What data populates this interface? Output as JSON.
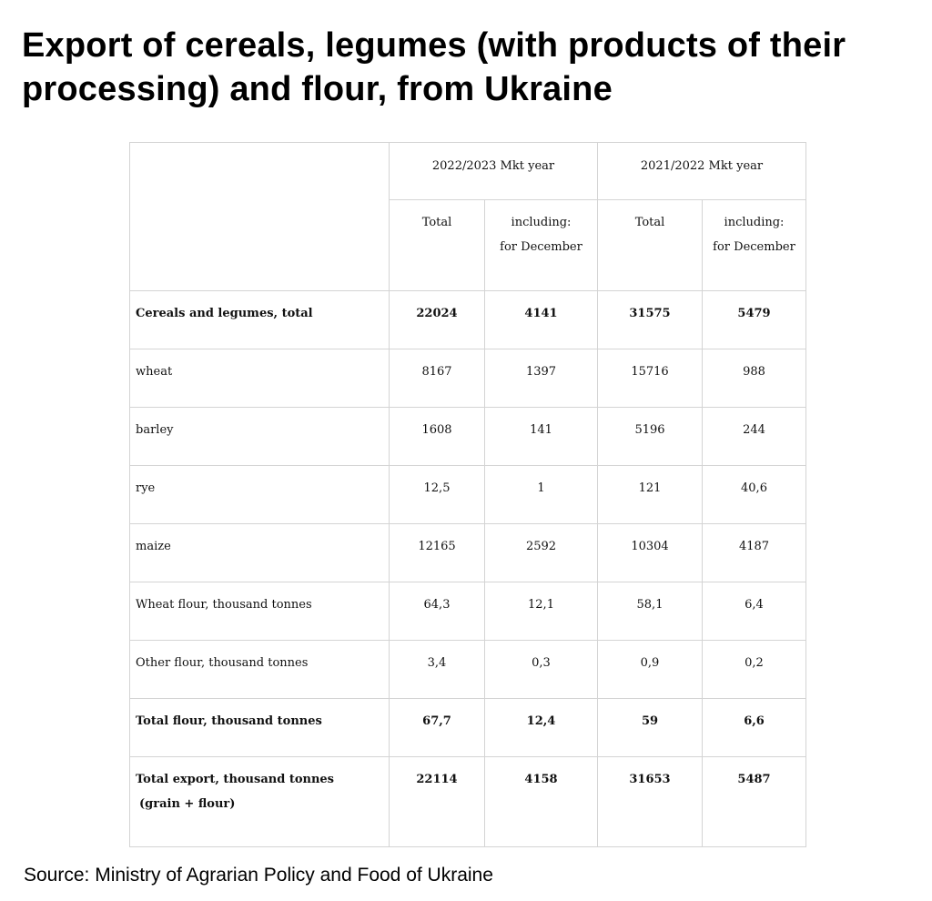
{
  "title": "Export of cereals, legumes (with products of their processing) and flour, from Ukraine",
  "table": {
    "headers": {
      "year_a": "2022/2023 Mkt year",
      "year_b": "2021/2022 Mkt year",
      "total": "Total",
      "including_line1": "including:",
      "including_line2": "for December"
    },
    "rows": [
      {
        "label": "Cereals and legumes, total",
        "values": [
          "22024",
          "4141",
          "31575",
          "5479"
        ],
        "bold": true
      },
      {
        "label": "wheat",
        "values": [
          "8167",
          "1397",
          "15716",
          "988"
        ],
        "bold": false
      },
      {
        "label": "barley",
        "values": [
          "1608",
          "141",
          "5196",
          "244"
        ],
        "bold": false
      },
      {
        "label": "rye",
        "values": [
          "12,5",
          "1",
          "121",
          "40,6"
        ],
        "bold": false
      },
      {
        "label": "maize",
        "values": [
          "12165",
          "2592",
          "10304",
          "4187"
        ],
        "bold": false
      },
      {
        "label": "Wheat flour, thousand tonnes",
        "values": [
          "64,3",
          "12,1",
          "58,1",
          "6,4"
        ],
        "bold": false
      },
      {
        "label": "Other flour, thousand tonnes",
        "values": [
          "3,4",
          "0,3",
          "0,9",
          "0,2"
        ],
        "bold": false
      },
      {
        "label": "Total flour, thousand tonnes",
        "values": [
          "67,7",
          "12,4",
          "59",
          "6,6"
        ],
        "bold": true
      }
    ],
    "final_row": {
      "label_line1": "Total export, thousand tonnes",
      "label_line2": "(grain + flour)",
      "values": [
        "22114",
        "4158",
        "31653",
        "5487"
      ]
    }
  },
  "source": "Source: Ministry of Agrarian Policy and Food of Ukraine"
}
